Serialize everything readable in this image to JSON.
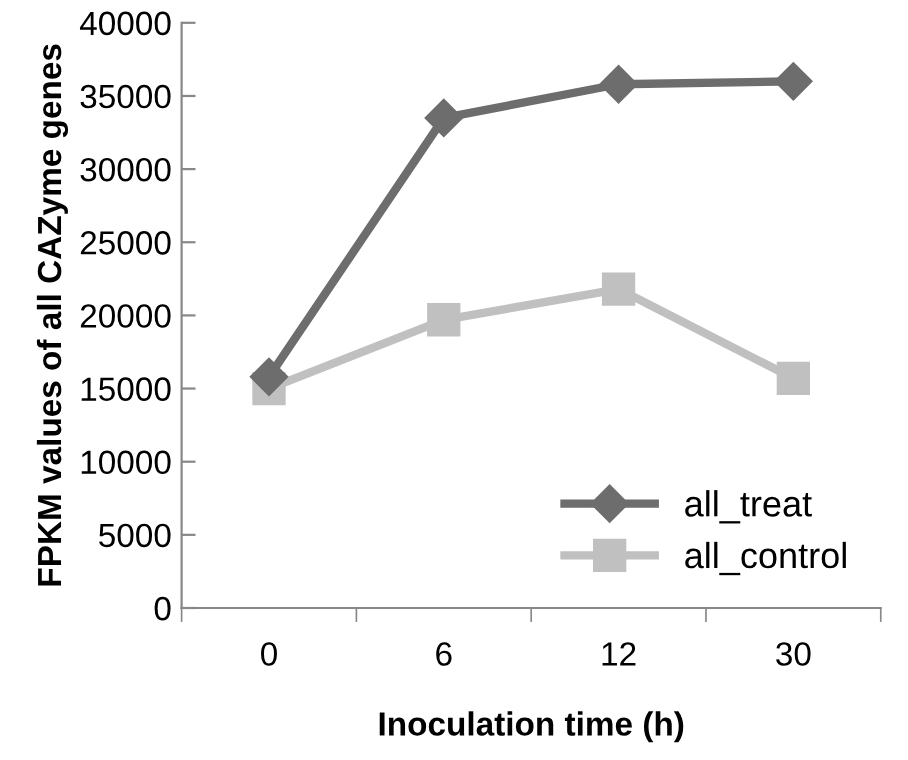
{
  "chart_data": {
    "type": "line",
    "xlabel": "Inoculation time (h)",
    "ylabel": "FPKM values of all CAZyme genes",
    "categories": [
      "0",
      "6",
      "12",
      "30"
    ],
    "series": [
      {
        "name": "all_treat",
        "color": "#6d6d6d",
        "marker": "diamond",
        "values": [
          15800,
          33500,
          35800,
          36000
        ]
      },
      {
        "name": "all_control",
        "color": "#c0c0c0",
        "marker": "square",
        "values": [
          15000,
          19700,
          21800,
          15700
        ]
      }
    ],
    "ylim": [
      0,
      40000
    ],
    "yticks": [
      0,
      5000,
      10000,
      15000,
      20000,
      25000,
      30000,
      35000,
      40000
    ],
    "grid": false,
    "legend": "bottom right"
  }
}
